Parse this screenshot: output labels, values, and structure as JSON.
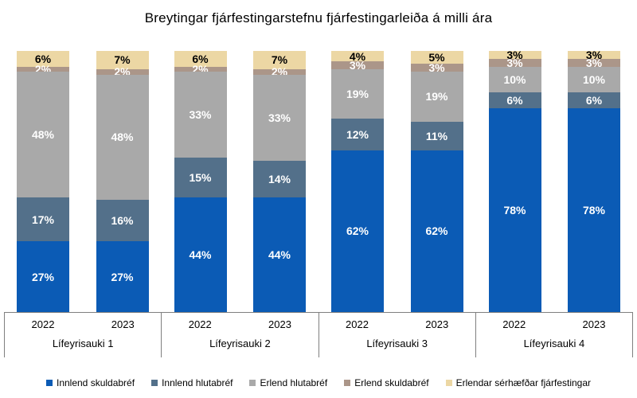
{
  "title": "Breytingar fjárfestingarstefnu fjárfestingarleiða á milli ára",
  "chart_data": {
    "type": "bar",
    "stacked": true,
    "unit": "%",
    "title": "Breytingar fjárfestingarstefnu fjárfestingarleiða á milli ára",
    "legend_position": "bottom",
    "ylim": [
      0,
      100
    ],
    "grid": false,
    "axis_line_color": "#7f7f7f",
    "series": [
      {
        "name": "Innlend skuldabréf",
        "color": "#0b5bb5",
        "label_color": "#ffffff"
      },
      {
        "name": "Innlend hlutabréf",
        "color": "#53708a",
        "label_color": "#ffffff"
      },
      {
        "name": "Erlend hlutabréf",
        "color": "#a9a9a9",
        "label_color": "#ffffff"
      },
      {
        "name": "Erlend skuldabréf",
        "color": "#ab9689",
        "label_color": "#ffffff"
      },
      {
        "name": "Erlendar sérhæfðar fjárfestingar",
        "color": "#ecd7a4",
        "label_color": "#000000"
      }
    ],
    "groups": [
      {
        "label": "Lífeyrisauki 1",
        "bars": [
          {
            "year": "2022",
            "values": [
              27,
              17,
              48,
              2,
              6
            ]
          },
          {
            "year": "2023",
            "values": [
              27,
              16,
              48,
              2,
              7
            ]
          }
        ]
      },
      {
        "label": "Lífeyrisauki 2",
        "bars": [
          {
            "year": "2022",
            "values": [
              44,
              15,
              33,
              2,
              6
            ]
          },
          {
            "year": "2023",
            "values": [
              44,
              14,
              33,
              2,
              7
            ]
          }
        ]
      },
      {
        "label": "Lífeyrisauki 3",
        "bars": [
          {
            "year": "2022",
            "values": [
              62,
              12,
              19,
              3,
              4
            ]
          },
          {
            "year": "2023",
            "values": [
              62,
              11,
              19,
              3,
              5
            ]
          }
        ]
      },
      {
        "label": "Lífeyrisauki 4",
        "bars": [
          {
            "year": "2022",
            "values": [
              78,
              6,
              10,
              3,
              3
            ]
          },
          {
            "year": "2023",
            "values": [
              78,
              6,
              10,
              3,
              3
            ]
          }
        ]
      }
    ]
  }
}
